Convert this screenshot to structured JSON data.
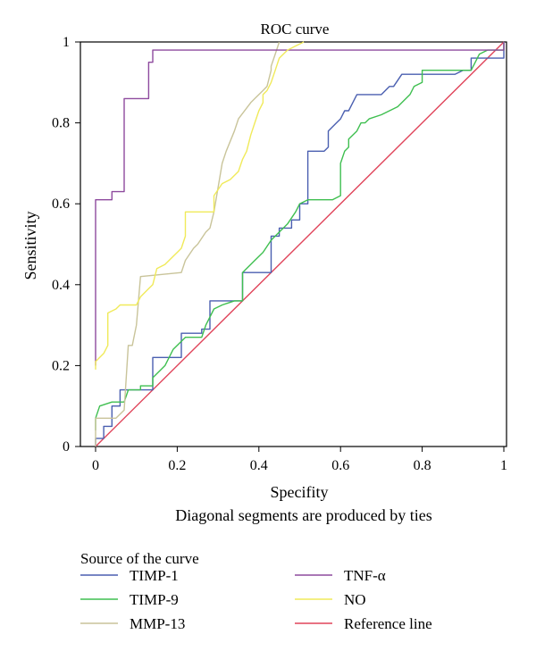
{
  "chart_data": {
    "type": "line",
    "title": "ROC curve",
    "xlabel": "Specifity",
    "ylabel": "Sensitivity",
    "xlim": [
      0,
      1
    ],
    "ylim": [
      0,
      1
    ],
    "xticks": [
      "0",
      "0.2",
      "0.4",
      "0.6",
      "0.8",
      "1"
    ],
    "yticks": [
      "0",
      "0.2",
      "0.4",
      "0.6",
      "0.8",
      "1"
    ],
    "note": "Diagonal segments are produced by ties",
    "legend_title": "Source of the curve",
    "legend_position": "bottom",
    "grid": false,
    "series": [
      {
        "name": "TIMP-1",
        "color": "#4a5fb0",
        "points": [
          [
            0,
            0
          ],
          [
            0,
            0.02
          ],
          [
            0.02,
            0.02
          ],
          [
            0.02,
            0.05
          ],
          [
            0.04,
            0.05
          ],
          [
            0.04,
            0.1
          ],
          [
            0.06,
            0.1
          ],
          [
            0.06,
            0.14
          ],
          [
            0.14,
            0.14
          ],
          [
            0.14,
            0.22
          ],
          [
            0.21,
            0.22
          ],
          [
            0.21,
            0.28
          ],
          [
            0.26,
            0.28
          ],
          [
            0.26,
            0.29
          ],
          [
            0.28,
            0.29
          ],
          [
            0.28,
            0.36
          ],
          [
            0.36,
            0.36
          ],
          [
            0.36,
            0.43
          ],
          [
            0.43,
            0.43
          ],
          [
            0.43,
            0.52
          ],
          [
            0.45,
            0.52
          ],
          [
            0.45,
            0.54
          ],
          [
            0.48,
            0.54
          ],
          [
            0.48,
            0.56
          ],
          [
            0.5,
            0.56
          ],
          [
            0.5,
            0.6
          ],
          [
            0.52,
            0.6
          ],
          [
            0.52,
            0.73
          ],
          [
            0.56,
            0.73
          ],
          [
            0.57,
            0.74
          ],
          [
            0.57,
            0.78
          ],
          [
            0.59,
            0.8
          ],
          [
            0.6,
            0.81
          ],
          [
            0.61,
            0.83
          ],
          [
            0.62,
            0.83
          ],
          [
            0.63,
            0.85
          ],
          [
            0.64,
            0.87
          ],
          [
            0.7,
            0.87
          ],
          [
            0.72,
            0.89
          ],
          [
            0.73,
            0.89
          ],
          [
            0.75,
            0.92
          ],
          [
            0.88,
            0.92
          ],
          [
            0.9,
            0.93
          ],
          [
            0.92,
            0.93
          ],
          [
            0.92,
            0.96
          ],
          [
            0.98,
            0.96
          ],
          [
            1,
            0.96
          ],
          [
            1,
            1
          ]
        ]
      },
      {
        "name": "TIMP-9",
        "color": "#3fbf50",
        "points": [
          [
            0,
            0.04
          ],
          [
            0,
            0.07
          ],
          [
            0.01,
            0.1
          ],
          [
            0.04,
            0.11
          ],
          [
            0.07,
            0.11
          ],
          [
            0.08,
            0.14
          ],
          [
            0.11,
            0.14
          ],
          [
            0.11,
            0.15
          ],
          [
            0.14,
            0.15
          ],
          [
            0.14,
            0.17
          ],
          [
            0.17,
            0.2
          ],
          [
            0.19,
            0.24
          ],
          [
            0.21,
            0.26
          ],
          [
            0.22,
            0.27
          ],
          [
            0.26,
            0.27
          ],
          [
            0.27,
            0.3
          ],
          [
            0.28,
            0.32
          ],
          [
            0.29,
            0.34
          ],
          [
            0.31,
            0.35
          ],
          [
            0.34,
            0.36
          ],
          [
            0.36,
            0.36
          ],
          [
            0.36,
            0.43
          ],
          [
            0.38,
            0.45
          ],
          [
            0.39,
            0.46
          ],
          [
            0.41,
            0.48
          ],
          [
            0.43,
            0.51
          ],
          [
            0.45,
            0.53
          ],
          [
            0.47,
            0.55
          ],
          [
            0.49,
            0.58
          ],
          [
            0.5,
            0.6
          ],
          [
            0.52,
            0.61
          ],
          [
            0.58,
            0.61
          ],
          [
            0.6,
            0.62
          ],
          [
            0.6,
            0.7
          ],
          [
            0.61,
            0.73
          ],
          [
            0.62,
            0.74
          ],
          [
            0.62,
            0.76
          ],
          [
            0.64,
            0.78
          ],
          [
            0.65,
            0.8
          ],
          [
            0.66,
            0.8
          ],
          [
            0.67,
            0.81
          ],
          [
            0.7,
            0.82
          ],
          [
            0.74,
            0.84
          ],
          [
            0.77,
            0.87
          ],
          [
            0.78,
            0.89
          ],
          [
            0.8,
            0.9
          ],
          [
            0.8,
            0.93
          ],
          [
            0.92,
            0.93
          ],
          [
            0.93,
            0.95
          ],
          [
            0.94,
            0.97
          ],
          [
            0.96,
            0.98
          ],
          [
            1,
            0.98
          ],
          [
            1,
            1
          ]
        ]
      },
      {
        "name": "MMP-13",
        "color": "#c9c49a",
        "points": [
          [
            0,
            0
          ],
          [
            0,
            0.07
          ],
          [
            0.05,
            0.07
          ],
          [
            0.07,
            0.09
          ],
          [
            0.08,
            0.25
          ],
          [
            0.09,
            0.25
          ],
          [
            0.1,
            0.3
          ],
          [
            0.11,
            0.42
          ],
          [
            0.21,
            0.43
          ],
          [
            0.22,
            0.46
          ],
          [
            0.24,
            0.49
          ],
          [
            0.25,
            0.5
          ],
          [
            0.27,
            0.53
          ],
          [
            0.28,
            0.54
          ],
          [
            0.29,
            0.58
          ],
          [
            0.3,
            0.64
          ],
          [
            0.31,
            0.7
          ],
          [
            0.32,
            0.73
          ],
          [
            0.34,
            0.78
          ],
          [
            0.35,
            0.81
          ],
          [
            0.38,
            0.85
          ],
          [
            0.39,
            0.86
          ],
          [
            0.41,
            0.88
          ],
          [
            0.42,
            0.89
          ],
          [
            0.43,
            0.93
          ],
          [
            0.43,
            0.94
          ],
          [
            0.44,
            0.97
          ],
          [
            0.45,
            1
          ]
        ]
      },
      {
        "name": "TNF-α",
        "color": "#8e4a9e",
        "points": [
          [
            0,
            0.2
          ],
          [
            0,
            0.61
          ],
          [
            0.04,
            0.61
          ],
          [
            0.04,
            0.63
          ],
          [
            0.07,
            0.63
          ],
          [
            0.07,
            0.86
          ],
          [
            0.13,
            0.86
          ],
          [
            0.13,
            0.95
          ],
          [
            0.14,
            0.95
          ],
          [
            0.14,
            0.98
          ],
          [
            1,
            0.98
          ],
          [
            1,
            1
          ]
        ]
      },
      {
        "name": "NO",
        "color": "#f0ea5a",
        "points": [
          [
            0,
            0.19
          ],
          [
            0,
            0.21
          ],
          [
            0.02,
            0.23
          ],
          [
            0.03,
            0.25
          ],
          [
            0.03,
            0.33
          ],
          [
            0.05,
            0.34
          ],
          [
            0.06,
            0.35
          ],
          [
            0.1,
            0.35
          ],
          [
            0.11,
            0.37
          ],
          [
            0.13,
            0.39
          ],
          [
            0.14,
            0.4
          ],
          [
            0.15,
            0.44
          ],
          [
            0.17,
            0.45
          ],
          [
            0.19,
            0.47
          ],
          [
            0.2,
            0.48
          ],
          [
            0.21,
            0.49
          ],
          [
            0.22,
            0.52
          ],
          [
            0.22,
            0.58
          ],
          [
            0.29,
            0.58
          ],
          [
            0.29,
            0.62
          ],
          [
            0.31,
            0.65
          ],
          [
            0.33,
            0.66
          ],
          [
            0.35,
            0.68
          ],
          [
            0.36,
            0.71
          ],
          [
            0.37,
            0.73
          ],
          [
            0.38,
            0.77
          ],
          [
            0.39,
            0.8
          ],
          [
            0.4,
            0.83
          ],
          [
            0.41,
            0.85
          ],
          [
            0.41,
            0.87
          ],
          [
            0.42,
            0.88
          ],
          [
            0.43,
            0.9
          ],
          [
            0.44,
            0.93
          ],
          [
            0.45,
            0.96
          ],
          [
            0.47,
            0.98
          ],
          [
            0.49,
            0.99
          ],
          [
            0.51,
            1
          ]
        ]
      },
      {
        "name": "Reference line",
        "color": "#e0445a",
        "points": [
          [
            0,
            0
          ],
          [
            1,
            1
          ]
        ]
      }
    ]
  }
}
